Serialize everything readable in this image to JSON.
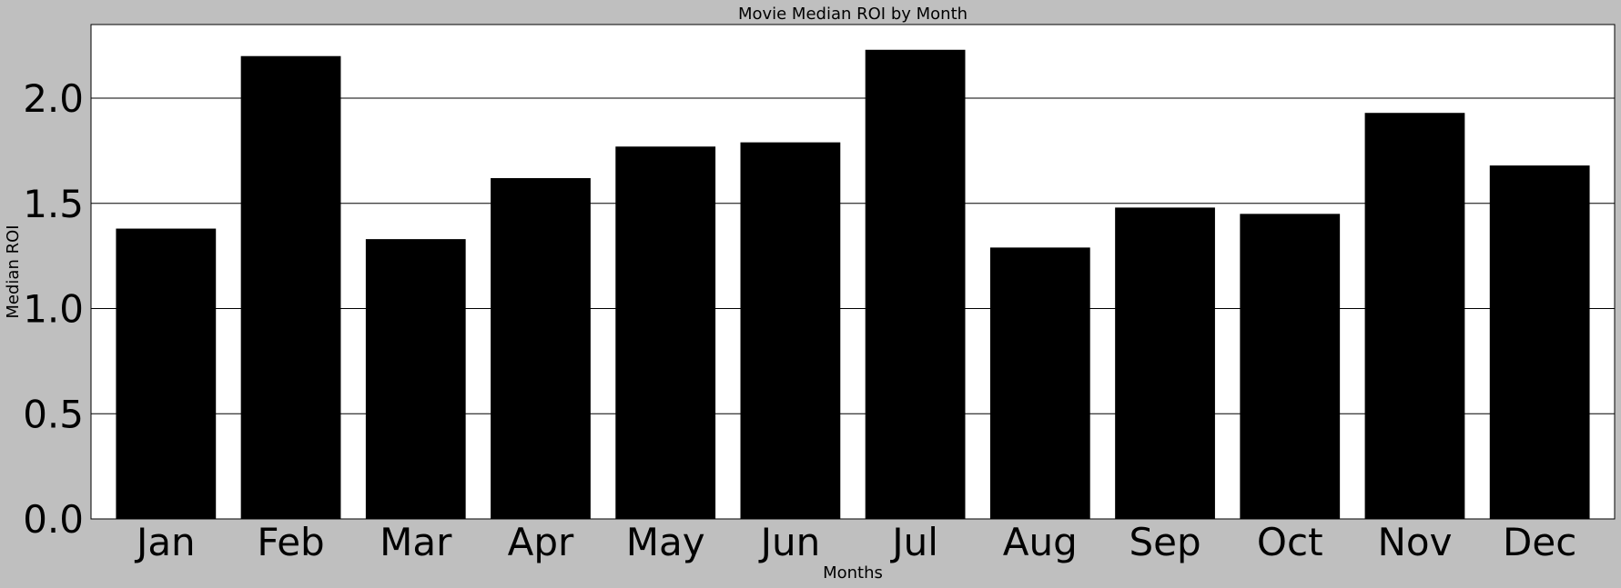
{
  "chart_data": {
    "type": "bar",
    "title": "Movie Median ROI by Month",
    "xlabel": "Months",
    "ylabel": "Median ROI",
    "categories": [
      "Jan",
      "Feb",
      "Mar",
      "Apr",
      "May",
      "Jun",
      "Jul",
      "Aug",
      "Sep",
      "Oct",
      "Nov",
      "Dec"
    ],
    "values": [
      1.38,
      2.2,
      1.33,
      1.62,
      1.77,
      1.79,
      2.23,
      1.29,
      1.48,
      1.45,
      1.93,
      1.68
    ],
    "ylim": [
      0,
      2.35
    ],
    "yticks": [
      "0.0",
      "0.5",
      "1.0",
      "1.5",
      "2.0"
    ],
    "grid": "horizontal",
    "colors": {
      "bar": "#000000",
      "background": "#bfbfbf",
      "plot_area": "#ffffff",
      "grid": "#000000"
    }
  }
}
